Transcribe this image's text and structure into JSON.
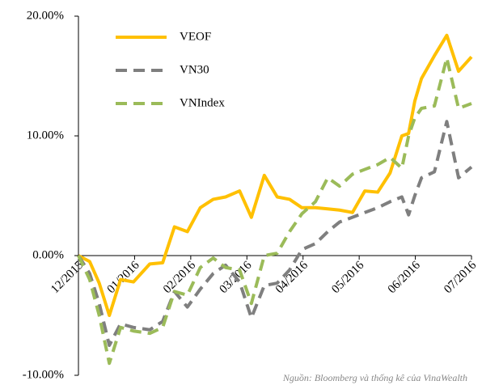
{
  "chart_data": {
    "type": "line",
    "x": [
      0,
      0.2,
      0.37,
      0.55,
      0.75,
      0.98,
      1.27,
      1.5,
      1.71,
      1.94,
      2.17,
      2.4,
      2.62,
      2.87,
      3.08,
      3.31,
      3.54,
      3.76,
      3.98,
      4.22,
      4.44,
      4.65,
      4.88,
      5.1,
      5.33,
      5.55,
      5.76,
      5.88,
      5.99,
      6.11,
      6.34,
      6.56,
      6.77,
      7.0
    ],
    "series": [
      {
        "name": "VEOF",
        "color": "#ffc000",
        "dash": false,
        "values": [
          0,
          -0.5,
          -2.3,
          -5,
          -2,
          -2.2,
          -0.7,
          -0.6,
          2.4,
          2.0,
          4.0,
          4.7,
          4.9,
          5.4,
          3.2,
          6.7,
          4.9,
          4.7,
          4.0,
          4.0,
          3.9,
          3.8,
          3.6,
          5.4,
          5.3,
          6.9,
          10,
          10.2,
          12.9,
          14.8,
          16.7,
          18.4,
          15.4,
          16.6
        ]
      },
      {
        "name": "VN30",
        "color": "#7f7f7f",
        "dash": true,
        "values": [
          0,
          -1.5,
          -4,
          -7.5,
          -5.7,
          -6,
          -6.2,
          -5.5,
          -3,
          -4.3,
          -2.8,
          -1.5,
          -0.8,
          -2.2,
          -5.2,
          -2.5,
          -2.3,
          -1.2,
          0.5,
          1.0,
          2,
          2.8,
          3.2,
          3.6,
          4,
          4.5,
          4.9,
          3.4,
          5,
          6.5,
          7,
          11.2,
          6.5,
          7.4
        ]
      },
      {
        "name": "VNIndex",
        "color": "#9bbb59",
        "dash": true,
        "values": [
          0,
          -2,
          -5,
          -9,
          -6,
          -6.3,
          -6.5,
          -6,
          -3,
          -3.3,
          -1,
          -0.2,
          -1,
          -1.2,
          -4,
          0,
          0.2,
          2,
          3.5,
          4.5,
          6.5,
          5.8,
          6.8,
          7.2,
          7.6,
          8.2,
          7.3,
          10,
          11.5,
          12.3,
          12.5,
          16.5,
          12.3,
          12.7
        ]
      }
    ],
    "xlim": [
      0,
      7
    ],
    "xticks": [
      {
        "value": 0,
        "label": "12/2015"
      },
      {
        "value": 1,
        "label": "01/2016"
      },
      {
        "value": 2,
        "label": "02/2016"
      },
      {
        "value": 3,
        "label": "03/2016"
      },
      {
        "value": 4,
        "label": "04/2016"
      },
      {
        "value": 5,
        "label": "05/2016"
      },
      {
        "value": 6,
        "label": "06/2016"
      },
      {
        "value": 7,
        "label": "07/2016"
      }
    ],
    "ylim": [
      -10,
      20
    ],
    "yticks": [
      {
        "value": -10,
        "label": "-10.00%"
      },
      {
        "value": 0,
        "label": "0.00%"
      },
      {
        "value": 10,
        "label": "10.00%"
      },
      {
        "value": 20,
        "label": "20.00%"
      }
    ],
    "legend": "top-left",
    "source": "Nguồn: Bloomberg và thống kê của VinaWealth"
  }
}
